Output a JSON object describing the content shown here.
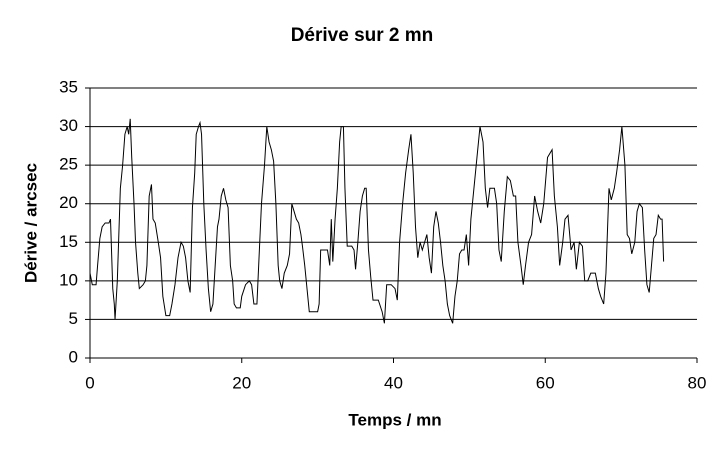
{
  "chart_data": {
    "type": "line",
    "title": "Dérive sur 2 mn",
    "x_label": "Temps / mn",
    "y_label": "Dérive / arcsec",
    "color": "#000000",
    "grid": true,
    "xlim": [
      0,
      80
    ],
    "xticks": [
      0,
      20,
      40,
      60,
      80
    ],
    "ylim": [
      0,
      35
    ],
    "yticks": [
      0,
      5,
      10,
      15,
      20,
      25,
      30,
      35
    ],
    "x": [
      0,
      0.3,
      0.8,
      1,
      1.3,
      1.6,
      2,
      2.5,
      2.7,
      2.8,
      3,
      3.2,
      3.3,
      3.6,
      4,
      4.3,
      4.6,
      4.9,
      5.1,
      5.3,
      5.5,
      5.8,
      6,
      6.3,
      6.5,
      7,
      7.3,
      7.5,
      7.8,
      8.1,
      8.3,
      8.6,
      9,
      9.3,
      9.6,
      10,
      10.5,
      10.8,
      11.2,
      11.6,
      12,
      12.3,
      12.6,
      12.9,
      13.2,
      13.5,
      13.8,
      14,
      14.3,
      14.5,
      14.7,
      15,
      15.3,
      15.6,
      15.9,
      16.2,
      16.5,
      16.8,
      17,
      17.3,
      17.6,
      17.9,
      18.2,
      18.5,
      18.8,
      19,
      19.3,
      19.8,
      20,
      20.5,
      21,
      21.3,
      21.6,
      22,
      22.3,
      22.6,
      23,
      23.3,
      23.6,
      23.9,
      24.2,
      24.5,
      24.8,
      25,
      25.3,
      25.6,
      26,
      26.3,
      26.6,
      26.9,
      27.2,
      27.5,
      27.8,
      28,
      28.3,
      28.6,
      28.9,
      29.5,
      30,
      30.2,
      30.4,
      31,
      31.3,
      31.6,
      31.8,
      32,
      32.3,
      32.6,
      32.9,
      33.1,
      33.4,
      33.6,
      33.9,
      34.5,
      34.8,
      35,
      35.3,
      35.6,
      35.9,
      36.2,
      36.4,
      36.7,
      37,
      37.3,
      38,
      38.5,
      38.8,
      39.1,
      39.7,
      40.2,
      40.5,
      40.8,
      41.2,
      41.6,
      42,
      42.3,
      42.6,
      42.9,
      43.2,
      43.5,
      43.8,
      44.1,
      44.4,
      44.7,
      45,
      45.3,
      45.6,
      45.9,
      46.2,
      46.5,
      46.8,
      47.1,
      47.4,
      47.8,
      48.1,
      48.4,
      48.7,
      49,
      49.3,
      49.6,
      49.9,
      50.2,
      50.6,
      51,
      51.4,
      51.8,
      52.1,
      52.4,
      52.7,
      53.3,
      53.6,
      53.9,
      54.2,
      54.6,
      55,
      55.4,
      55.8,
      56.1,
      56.4,
      56.8,
      57.1,
      57.4,
      57.8,
      58.2,
      58.6,
      59,
      59.4,
      59.8,
      60.3,
      60.9,
      61.2,
      61.6,
      61.9,
      62.3,
      62.6,
      63,
      63.4,
      63.8,
      64.1,
      64.5,
      64.9,
      65.2,
      65.6,
      66,
      66.6,
      67,
      67.3,
      67.7,
      68,
      68.4,
      68.7,
      69.1,
      69.4,
      69.8,
      70.1,
      70.5,
      70.8,
      71.1,
      71.4,
      71.8,
      72.1,
      72.4,
      72.8,
      73.1,
      73.4,
      73.7,
      74,
      74.3,
      74.6,
      74.9,
      75.2,
      75.4,
      75.6
    ],
    "values": [
      11,
      9.5,
      9.5,
      12,
      15.5,
      17,
      17.5,
      17.5,
      18,
      15,
      9,
      7,
      5,
      10,
      22,
      25,
      29,
      30,
      29,
      31,
      26,
      20,
      15,
      11,
      9,
      9.5,
      10,
      12,
      21,
      22.5,
      18,
      17.5,
      15,
      13,
      8,
      5.5,
      5.5,
      7,
      9.5,
      13,
      15,
      14.5,
      13,
      10,
      8.5,
      19.5,
      24,
      29,
      30,
      30.5,
      29,
      20,
      14,
      9,
      6,
      7,
      12,
      17,
      18,
      21,
      22,
      20.5,
      19.5,
      12,
      10,
      7,
      6.5,
      6.5,
      8,
      9.5,
      10,
      9.5,
      7,
      7,
      13.5,
      20,
      25,
      30,
      28,
      27,
      25.5,
      20,
      12,
      10,
      9,
      11,
      12,
      13.5,
      20,
      19,
      18,
      17.5,
      16,
      14.5,
      12,
      9,
      6,
      6,
      6,
      7,
      14,
      14,
      14,
      12,
      18,
      12.5,
      18,
      22,
      28,
      30,
      30,
      22,
      14.5,
      14.5,
      14,
      11.5,
      15,
      19,
      21,
      22,
      22,
      14,
      10.5,
      7.5,
      7.5,
      6,
      4.5,
      9.5,
      9.5,
      9,
      7.5,
      15,
      20,
      24,
      27,
      29,
      24,
      17,
      13,
      15,
      14,
      15,
      16,
      13,
      11,
      17,
      19,
      17.5,
      15,
      12,
      10,
      7,
      5.5,
      4.5,
      8,
      10,
      13.5,
      14,
      14,
      16,
      12,
      18,
      22,
      26,
      30,
      28,
      22,
      19.5,
      22,
      22,
      20,
      14,
      12.5,
      19,
      23.5,
      23,
      21,
      21,
      15,
      12,
      9.5,
      12,
      15,
      16,
      21,
      19,
      17.5,
      20,
      26,
      27,
      21,
      17,
      12,
      15,
      18,
      18.5,
      14,
      15,
      11.5,
      15,
      14.5,
      10,
      10,
      11,
      11,
      9,
      8,
      7,
      11,
      22,
      20.5,
      22,
      24,
      27,
      30,
      25,
      16,
      15.5,
      13.5,
      15,
      19,
      20,
      19.5,
      14,
      9.5,
      8.5,
      12,
      15.5,
      16,
      18.5,
      18,
      18,
      12.5
    ]
  }
}
